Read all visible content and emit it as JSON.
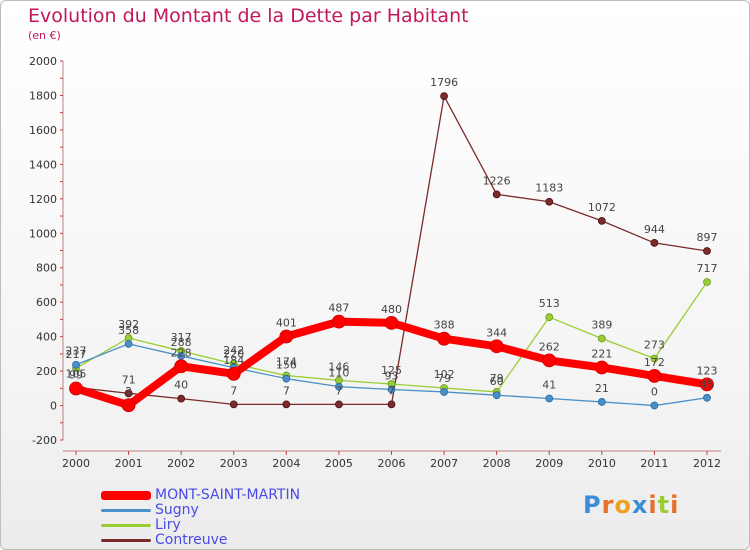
{
  "header": {
    "title": "Evolution du Montant de la Dette par Habitant",
    "subtitle": "(en €)"
  },
  "logo": {
    "text": "Proxiti"
  },
  "chart_data": {
    "type": "line",
    "title": "Evolution du Montant de la Dette par Habitant",
    "ylabel": "(en €)",
    "xlabel": "",
    "categories": [
      "2000",
      "2001",
      "2002",
      "2003",
      "2004",
      "2005",
      "2006",
      "2007",
      "2008",
      "2009",
      "2010",
      "2011",
      "2012"
    ],
    "ylim": [
      -200,
      2000
    ],
    "yticks": [
      -200,
      0,
      200,
      400,
      600,
      800,
      1000,
      1200,
      1400,
      1600,
      1800,
      2000
    ],
    "grid": false,
    "legend_position": "bottom-left",
    "series": [
      {
        "name": "MONT-SAINT-MARTIN",
        "color": "#ff0000",
        "values": [
          99,
          2,
          228,
          184,
          401,
          487,
          480,
          388,
          344,
          262,
          221,
          172,
          123
        ]
      },
      {
        "name": "Sugny",
        "color": "#4a90c8",
        "values": [
          237,
          358,
          288,
          220,
          156,
          110,
          93,
          79,
          60,
          41,
          21,
          0,
          45
        ]
      },
      {
        "name": "Liry",
        "color": "#9acd32",
        "values": [
          217,
          392,
          317,
          242,
          174,
          146,
          125,
          102,
          79,
          513,
          389,
          273,
          717
        ]
      },
      {
        "name": "Contreuve",
        "color": "#7b2b2b",
        "values": [
          105,
          71,
          40,
          7,
          7,
          7,
          7,
          1796,
          1226,
          1183,
          1072,
          944,
          897
        ]
      }
    ],
    "data_labels": [
      {
        "series": 0,
        "labels": [
          "99",
          "2",
          "228",
          "184",
          "401",
          "487",
          "480",
          "388",
          "344",
          "262",
          "221",
          "172",
          "123"
        ]
      },
      {
        "series": 1,
        "labels": [
          "237",
          "358",
          "288",
          "220",
          "156",
          "110",
          "93",
          "79",
          "60",
          "41",
          "21",
          "0",
          "45"
        ]
      },
      {
        "series": 2,
        "labels": [
          "217",
          "392",
          "317",
          "242",
          "174",
          "146",
          "125",
          "102",
          "79",
          "513",
          "389",
          "273",
          "717"
        ]
      },
      {
        "series": 3,
        "labels": [
          "105",
          "71",
          "40",
          "7",
          "7",
          "7",
          "7",
          "1796",
          "1226",
          "1183",
          "1072",
          "944",
          "897"
        ]
      }
    ]
  }
}
